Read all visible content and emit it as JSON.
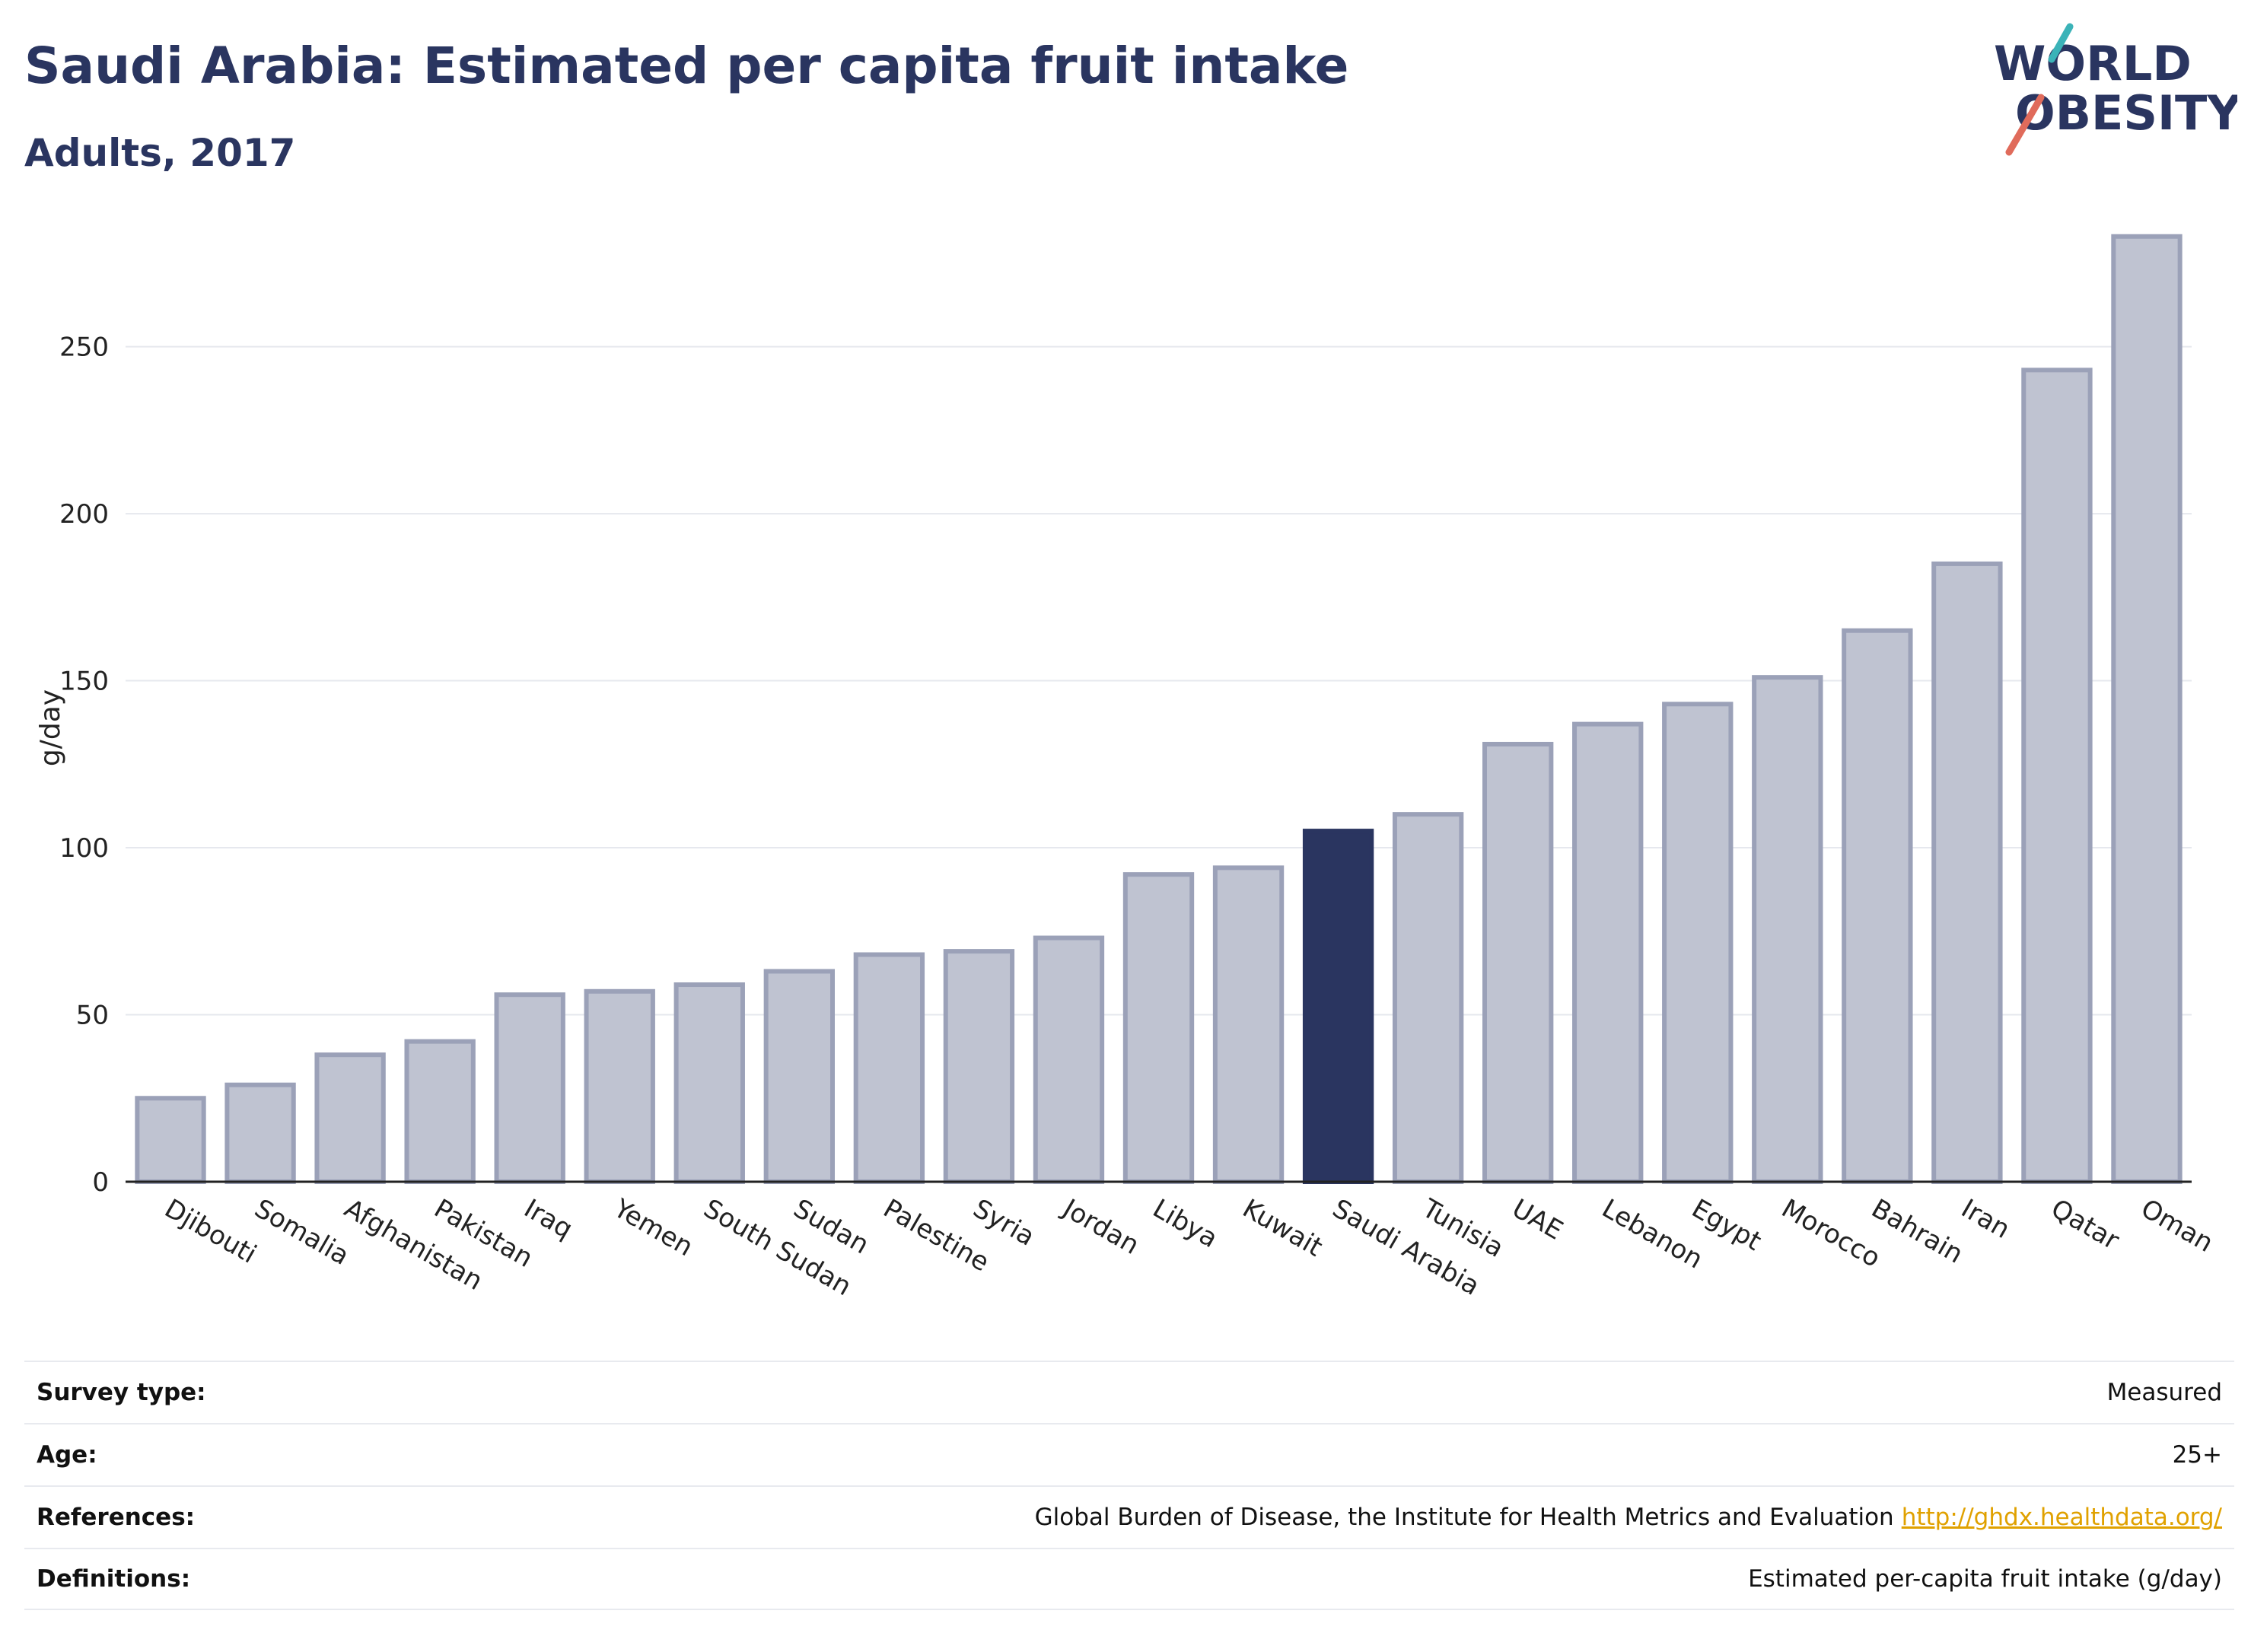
{
  "header": {
    "title": "Saudi Arabia: Estimated per capita fruit intake",
    "subtitle": "Adults, 2017"
  },
  "logo": {
    "line1": "WORLD",
    "line2": "OBESITY",
    "accent_teal": "#3bb3b8",
    "accent_red": "#e06b5b"
  },
  "colors": {
    "bar": "#bfc3d1",
    "bar_edge": "#9ba1b8",
    "highlight": "#2a3560"
  },
  "chart_data": {
    "type": "bar",
    "title": "Saudi Arabia: Estimated per capita fruit intake",
    "subtitle": "Adults, 2017",
    "ylabel": "g/day",
    "xlabel": "",
    "ylim": [
      0,
      290
    ],
    "yticks": [
      0,
      50,
      100,
      150,
      200,
      250
    ],
    "grid": true,
    "highlight": "Saudi Arabia",
    "categories": [
      "Djibouti",
      "Somalia",
      "Afghanistan",
      "Pakistan",
      "Iraq",
      "Yemen",
      "South Sudan",
      "Sudan",
      "Palestine",
      "Syria",
      "Jordan",
      "Libya",
      "Kuwait",
      "Saudi Arabia",
      "Tunisia",
      "UAE",
      "Lebanon",
      "Egypt",
      "Morocco",
      "Bahrain",
      "Iran",
      "Qatar",
      "Oman"
    ],
    "values": [
      25,
      29,
      38,
      42,
      56,
      57,
      59,
      63,
      68,
      69,
      73,
      92,
      94,
      105,
      110,
      131,
      137,
      143,
      151,
      165,
      185,
      243,
      283
    ]
  },
  "info": [
    {
      "label": "Survey type:",
      "value": "Measured",
      "link": ""
    },
    {
      "label": "Age:",
      "value": "25+",
      "link": ""
    },
    {
      "label": "References:",
      "value": "Global Burden of Disease, the Institute for Health Metrics and Evaluation",
      "link": "http://ghdx.healthdata.org/"
    },
    {
      "label": "Definitions:",
      "value": "Estimated per-capita fruit intake (g/day)",
      "link": ""
    }
  ]
}
